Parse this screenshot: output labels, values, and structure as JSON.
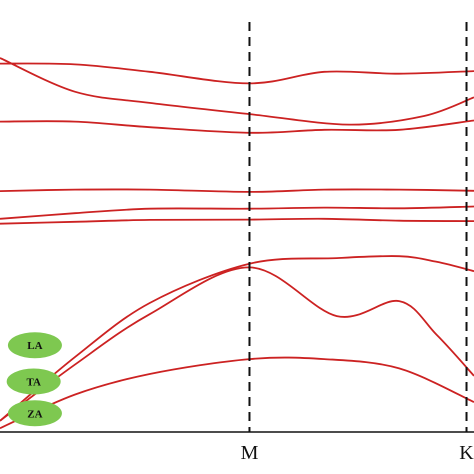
{
  "chart_data": {
    "type": "line",
    "title": "",
    "xlabel": "",
    "ylabel": "",
    "xlim": [
      0,
      1.9
    ],
    "ylim": [
      0,
      1
    ],
    "x_ticks": [
      {
        "pos": 1.0,
        "label": "M"
      },
      {
        "pos": 1.87,
        "label": "K"
      }
    ],
    "grid": false,
    "colors": {
      "line": "#cc2222",
      "axis": "#111111",
      "label_fill": "#7ec850"
    },
    "mode_labels": [
      {
        "text": "LA",
        "x": 0.14,
        "y": 0.232
      },
      {
        "text": "TA",
        "x": 0.135,
        "y": 0.135
      },
      {
        "text": "ZA",
        "x": 0.14,
        "y": 0.05
      }
    ],
    "series": [
      {
        "x": [
          0,
          0.3,
          0.6,
          1.0,
          1.3,
          1.6,
          1.9
        ],
        "y": [
          0.985,
          0.983,
          0.963,
          0.932,
          0.963,
          0.958,
          0.965
        ]
      },
      {
        "x": [
          0,
          0.3,
          0.6,
          1.0,
          1.4,
          1.7,
          1.9
        ],
        "y": [
          1.0,
          0.91,
          0.88,
          0.85,
          0.822,
          0.845,
          0.895
        ]
      },
      {
        "x": [
          0,
          0.3,
          0.6,
          1.0,
          1.3,
          1.6,
          1.9
        ],
        "y": [
          0.83,
          0.83,
          0.815,
          0.8,
          0.808,
          0.808,
          0.833
        ]
      },
      {
        "x": [
          0,
          0.3,
          0.6,
          1.0,
          1.3,
          1.6,
          1.9
        ],
        "y": [
          0.644,
          0.648,
          0.648,
          0.642,
          0.648,
          0.648,
          0.645
        ]
      },
      {
        "x": [
          0,
          0.3,
          0.6,
          1.0,
          1.3,
          1.6,
          1.9
        ],
        "y": [
          0.57,
          0.585,
          0.597,
          0.597,
          0.6,
          0.598,
          0.603
        ]
      },
      {
        "x": [
          0,
          0.3,
          0.6,
          1.0,
          1.3,
          1.6,
          1.9
        ],
        "y": [
          0.557,
          0.562,
          0.567,
          0.568,
          0.57,
          0.565,
          0.564
        ]
      },
      {
        "x": [
          0,
          0.3,
          0.6,
          1.0,
          1.35,
          1.6,
          1.75,
          1.9
        ],
        "y": [
          0.03,
          0.2,
          0.345,
          0.45,
          0.465,
          0.47,
          0.455,
          0.43
        ]
      },
      {
        "x": [
          0,
          0.3,
          0.6,
          1.0,
          1.35,
          1.6,
          1.75,
          1.9
        ],
        "y": [
          0.03,
          0.18,
          0.315,
          0.44,
          0.31,
          0.35,
          0.26,
          0.15
        ]
      },
      {
        "x": [
          0,
          0.3,
          0.6,
          1.0,
          1.3,
          1.6,
          1.9
        ],
        "y": [
          0.01,
          0.1,
          0.155,
          0.195,
          0.195,
          0.17,
          0.08
        ]
      }
    ]
  }
}
